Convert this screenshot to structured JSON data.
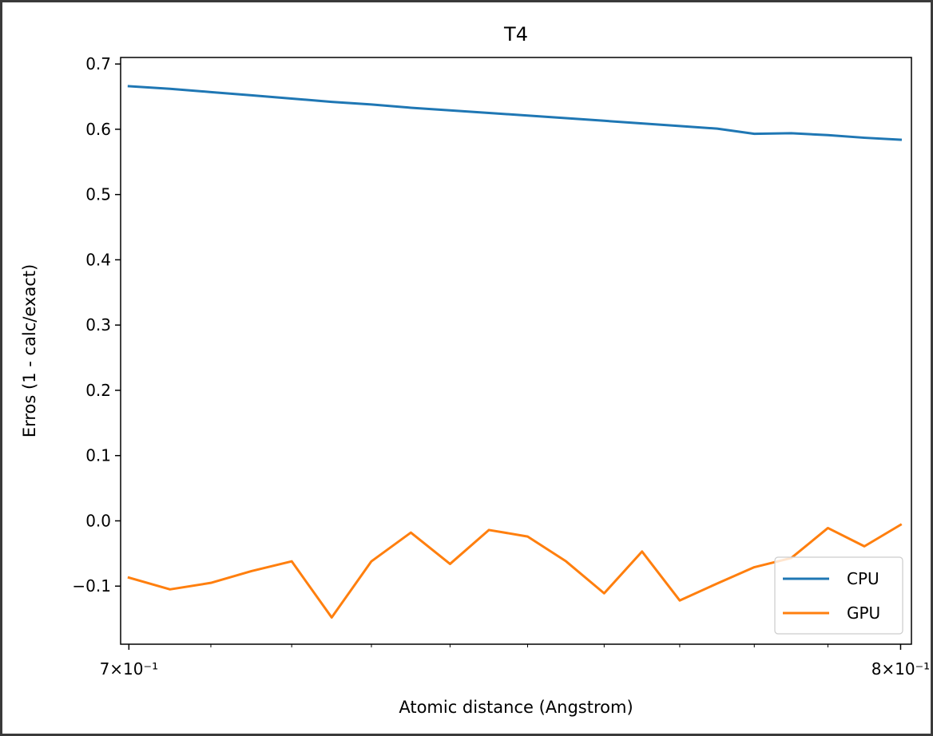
{
  "chart_data": {
    "type": "line",
    "title": "T4",
    "xlabel": "Atomic distance (Angstrom)",
    "ylabel": "Erros (1 - calc/exact)",
    "x_scale": "log",
    "xlim": [
      0.699,
      0.8015
    ],
    "ylim": [
      -0.189,
      0.71
    ],
    "x_ticks": [
      {
        "value": 0.7,
        "label": "7×10⁻¹"
      },
      {
        "value": 0.8,
        "label": "8×10⁻¹"
      }
    ],
    "y_ticks": [
      {
        "value": 0.7,
        "label": "0.7"
      },
      {
        "value": 0.6,
        "label": "0.6"
      },
      {
        "value": 0.5,
        "label": "0.5"
      },
      {
        "value": 0.4,
        "label": "0.4"
      },
      {
        "value": 0.3,
        "label": "0.3"
      },
      {
        "value": 0.2,
        "label": "0.2"
      },
      {
        "value": 0.1,
        "label": "0.1"
      },
      {
        "value": 0.0,
        "label": "0.0"
      },
      {
        "value": -0.1,
        "label": "−0.1"
      }
    ],
    "x": [
      0.7,
      0.705,
      0.71,
      0.715,
      0.72,
      0.725,
      0.73,
      0.735,
      0.74,
      0.745,
      0.75,
      0.755,
      0.76,
      0.765,
      0.77,
      0.775,
      0.78,
      0.785,
      0.79,
      0.795,
      0.8
    ],
    "series": [
      {
        "name": "CPU",
        "color": "#1f77b4",
        "values": [
          0.666,
          0.662,
          0.657,
          0.652,
          0.647,
          0.642,
          0.638,
          0.633,
          0.629,
          0.625,
          0.621,
          0.617,
          0.613,
          0.609,
          0.605,
          0.601,
          0.593,
          0.594,
          0.591,
          0.587,
          0.584
        ]
      },
      {
        "name": "GPU",
        "color": "#ff7f0e",
        "values": [
          -0.087,
          -0.105,
          -0.095,
          -0.077,
          -0.062,
          -0.148,
          -0.062,
          -0.018,
          -0.066,
          -0.014,
          -0.024,
          -0.062,
          -0.111,
          -0.047,
          -0.122,
          -0.096,
          -0.071,
          -0.057,
          -0.011,
          -0.039,
          -0.006
        ]
      }
    ],
    "legend_position": "lower-right",
    "grid": false
  }
}
